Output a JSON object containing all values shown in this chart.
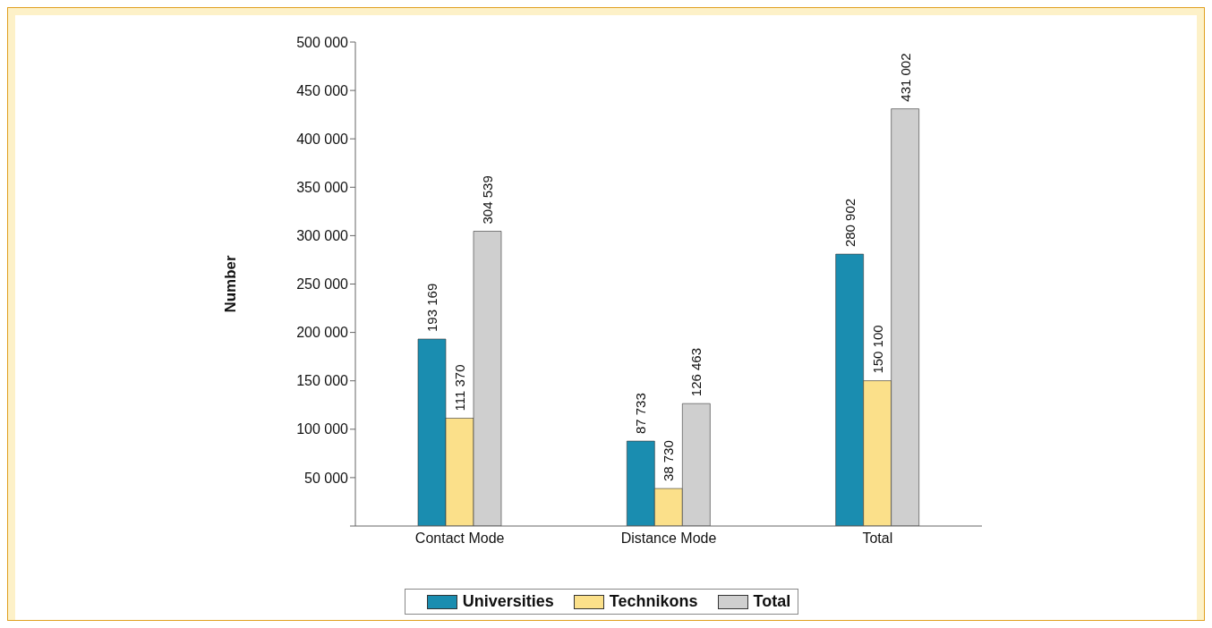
{
  "chart_data": {
    "type": "bar",
    "ylabel": "Number",
    "categories": [
      "Contact Mode",
      "Distance Mode",
      "Total"
    ],
    "series": [
      {
        "name": "Universities",
        "color": "#1a8db0",
        "values": [
          193169,
          87733,
          280902
        ],
        "value_labels": [
          "193 169",
          "87 733",
          "280 902"
        ]
      },
      {
        "name": "Technikons",
        "color": "#fbe08a",
        "values": [
          111370,
          38730,
          150100
        ],
        "value_labels": [
          "111 370",
          "38 730",
          "150 100"
        ]
      },
      {
        "name": "Total",
        "color": "#cfcfcf",
        "values": [
          304539,
          126463,
          431002
        ],
        "value_labels": [
          "304 539",
          "126 463",
          "431 002"
        ]
      }
    ],
    "ylim": [
      0,
      500000
    ],
    "yticks": [
      {
        "value": 0,
        "label": null
      },
      {
        "value": 50000,
        "label": "50 000"
      },
      {
        "value": 100000,
        "label": "100 000"
      },
      {
        "value": 150000,
        "label": "150 000"
      },
      {
        "value": 200000,
        "label": "200 000"
      },
      {
        "value": 250000,
        "label": "250 000"
      },
      {
        "value": 300000,
        "label": "300 000"
      },
      {
        "value": 350000,
        "label": "350 000"
      },
      {
        "value": 400000,
        "label": "400 000"
      },
      {
        "value": 450000,
        "label": "450 000"
      },
      {
        "value": 500000,
        "label": "500 000"
      }
    ],
    "grid": false,
    "legend": "bottom"
  }
}
